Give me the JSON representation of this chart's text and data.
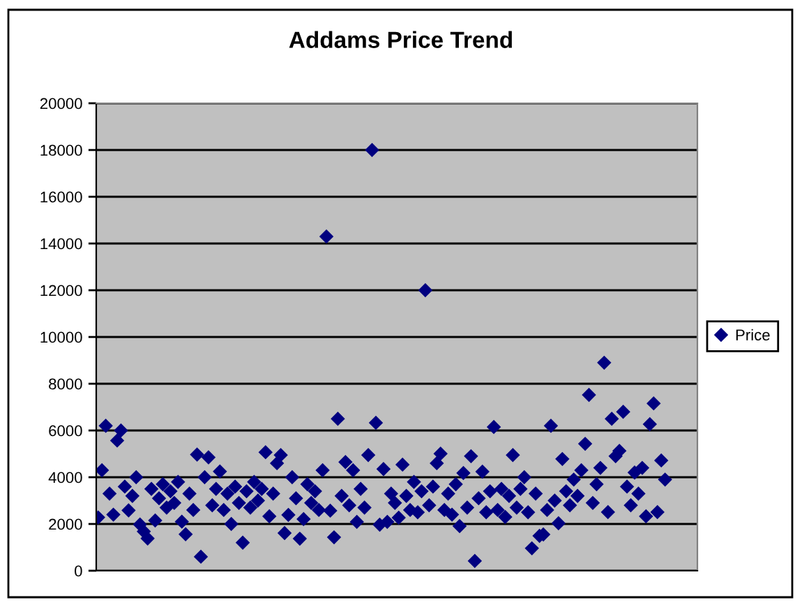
{
  "chart_data": {
    "type": "scatter",
    "title": "Addams Price Trend",
    "categories": [
      null,
      null,
      null,
      null,
      null,
      null,
      null,
      null,
      null,
      null,
      null,
      null,
      null,
      null,
      null,
      null,
      null,
      null,
      null,
      null,
      null,
      null,
      null,
      null,
      null,
      null,
      null,
      null,
      null,
      null,
      null,
      null,
      null,
      null,
      null,
      null,
      null,
      null,
      null,
      null,
      null,
      null,
      null,
      null,
      null,
      null,
      null,
      null,
      null,
      null,
      null,
      null,
      null,
      null,
      null,
      null,
      null,
      null,
      null,
      null,
      null,
      null,
      null,
      null,
      null,
      null,
      null,
      null,
      null,
      null,
      null,
      null,
      null,
      null,
      null,
      null,
      null,
      null,
      null,
      null,
      null,
      null,
      null,
      null,
      null,
      null,
      null,
      null,
      null,
      null,
      null,
      null,
      null,
      null,
      null,
      null,
      null,
      null,
      null,
      null,
      null,
      null,
      null,
      null,
      null,
      null,
      null,
      null,
      null,
      null,
      null,
      null,
      null,
      null,
      null,
      null,
      null,
      null,
      null,
      null,
      null,
      null,
      null,
      null,
      null,
      null,
      null,
      null,
      null,
      null,
      null,
      null,
      null,
      null,
      null,
      null,
      null,
      null,
      null,
      null,
      null,
      null,
      null,
      null,
      null,
      null,
      null,
      null,
      null,
      null,
      null,
      null,
      null,
      null,
      null,
      null,
      null,
      null
    ],
    "series": [
      {
        "name": "Price",
        "color": "#000080",
        "values": [
          2280,
          4300,
          6200,
          3300,
          2400,
          5570,
          6000,
          3600,
          2580,
          3200,
          4000,
          1980,
          1680,
          1380,
          3500,
          2150,
          3100,
          3700,
          2700,
          3400,
          2900,
          3800,
          2100,
          1560,
          3300,
          2600,
          4970,
          600,
          4000,
          4850,
          2800,
          3500,
          4250,
          2600,
          3300,
          2000,
          3600,
          2900,
          1200,
          3400,
          2700,
          3800,
          3000,
          3500,
          5070,
          2330,
          3300,
          4600,
          4950,
          1610,
          2390,
          4000,
          3100,
          1370,
          2210,
          3700,
          2900,
          3400,
          2600,
          4300,
          14300,
          2570,
          1430,
          6500,
          3200,
          4650,
          2800,
          4300,
          2090,
          3500,
          2700,
          4950,
          18000,
          6330,
          1970,
          4350,
          2090,
          3300,
          2900,
          2270,
          4540,
          3200,
          2600,
          3800,
          2500,
          3400,
          12000,
          2800,
          3600,
          4600,
          5010,
          2600,
          3300,
          2400,
          3700,
          1910,
          4180,
          2700,
          4900,
          420,
          3100,
          4240,
          2500,
          3400,
          6150,
          2600,
          3500,
          2300,
          3200,
          4950,
          2700,
          3500,
          4000,
          2500,
          960,
          3300,
          1490,
          1550,
          2600,
          6200,
          3000,
          2030,
          4780,
          3400,
          2800,
          3900,
          3200,
          4300,
          5430,
          7520,
          2900,
          3700,
          4400,
          8900,
          2510,
          6500,
          4900,
          5130,
          6800,
          3600,
          2800,
          4200,
          3300,
          4400,
          2330,
          6270,
          7160,
          2510,
          4720,
          3900,
          null,
          null,
          null,
          null,
          null,
          null,
          null,
          null
        ]
      }
    ],
    "ylim": [
      0,
      20000
    ],
    "yticks": [
      0,
      2000,
      4000,
      6000,
      8000,
      10000,
      12000,
      14000,
      16000,
      18000,
      20000
    ],
    "grid": "y",
    "legend": "right",
    "marker": "diamond",
    "tick_labels": "y"
  }
}
